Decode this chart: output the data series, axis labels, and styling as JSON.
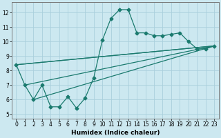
{
  "xlabel": "Humidex (Indice chaleur)",
  "bg_color": "#cce8f0",
  "grid_color": "#aacfdc",
  "line_color": "#1a7a6e",
  "xlim": [
    -0.5,
    23.5
  ],
  "ylim": [
    4.7,
    12.7
  ],
  "xticks": [
    0,
    1,
    2,
    3,
    4,
    5,
    6,
    7,
    8,
    9,
    10,
    11,
    12,
    13,
    14,
    15,
    16,
    17,
    18,
    19,
    20,
    21,
    22,
    23
  ],
  "yticks": [
    5,
    6,
    7,
    8,
    9,
    10,
    11,
    12
  ],
  "line1_x": [
    0,
    1,
    2,
    3,
    4,
    5,
    6,
    7,
    8,
    9,
    10,
    11,
    12,
    13,
    14,
    15,
    16,
    17,
    18,
    19,
    20,
    21,
    22,
    23
  ],
  "line1_y": [
    8.4,
    7.0,
    6.0,
    7.0,
    5.5,
    5.5,
    6.2,
    5.4,
    6.1,
    7.5,
    10.1,
    11.6,
    12.2,
    12.2,
    10.6,
    10.6,
    10.4,
    10.4,
    10.5,
    10.6,
    10.0,
    9.5,
    9.5,
    9.7
  ],
  "line2_x": [
    0,
    23
  ],
  "line2_y": [
    8.4,
    9.7
  ],
  "line3_x": [
    0,
    23
  ],
  "line3_y": [
    8.4,
    9.7
  ],
  "line4_x": [
    2,
    23
  ],
  "line4_y": [
    6.0,
    9.7
  ],
  "line5_x": [
    1,
    23
  ],
  "line5_y": [
    7.0,
    9.7
  ],
  "marker_size": 2.5,
  "line_width": 0.9,
  "tick_fontsize": 5.5,
  "xlabel_fontsize": 6.5
}
